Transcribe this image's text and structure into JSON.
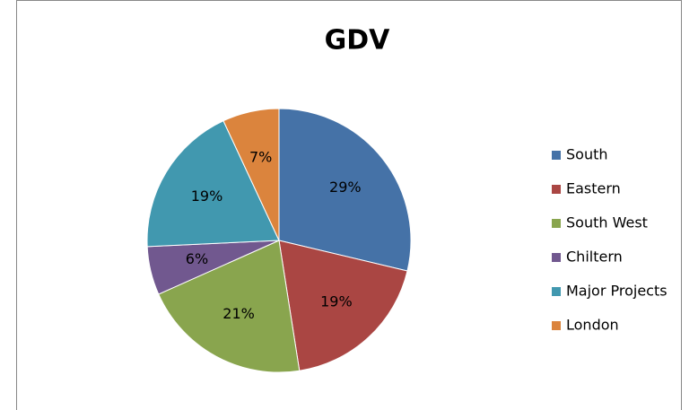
{
  "chart_data": {
    "type": "pie",
    "title": "GDV",
    "categories": [
      "South",
      "Eastern",
      "South West",
      "Chiltern",
      "Major Projects",
      "London"
    ],
    "values": [
      29,
      19,
      21,
      6,
      19,
      7
    ],
    "value_labels": [
      "29%",
      "19%",
      "21%",
      "6%",
      "19%",
      "7%"
    ],
    "colors": [
      "#4572a7",
      "#aa4643",
      "#89a54e",
      "#71588f",
      "#4198af",
      "#db843d"
    ],
    "legend": "right"
  }
}
